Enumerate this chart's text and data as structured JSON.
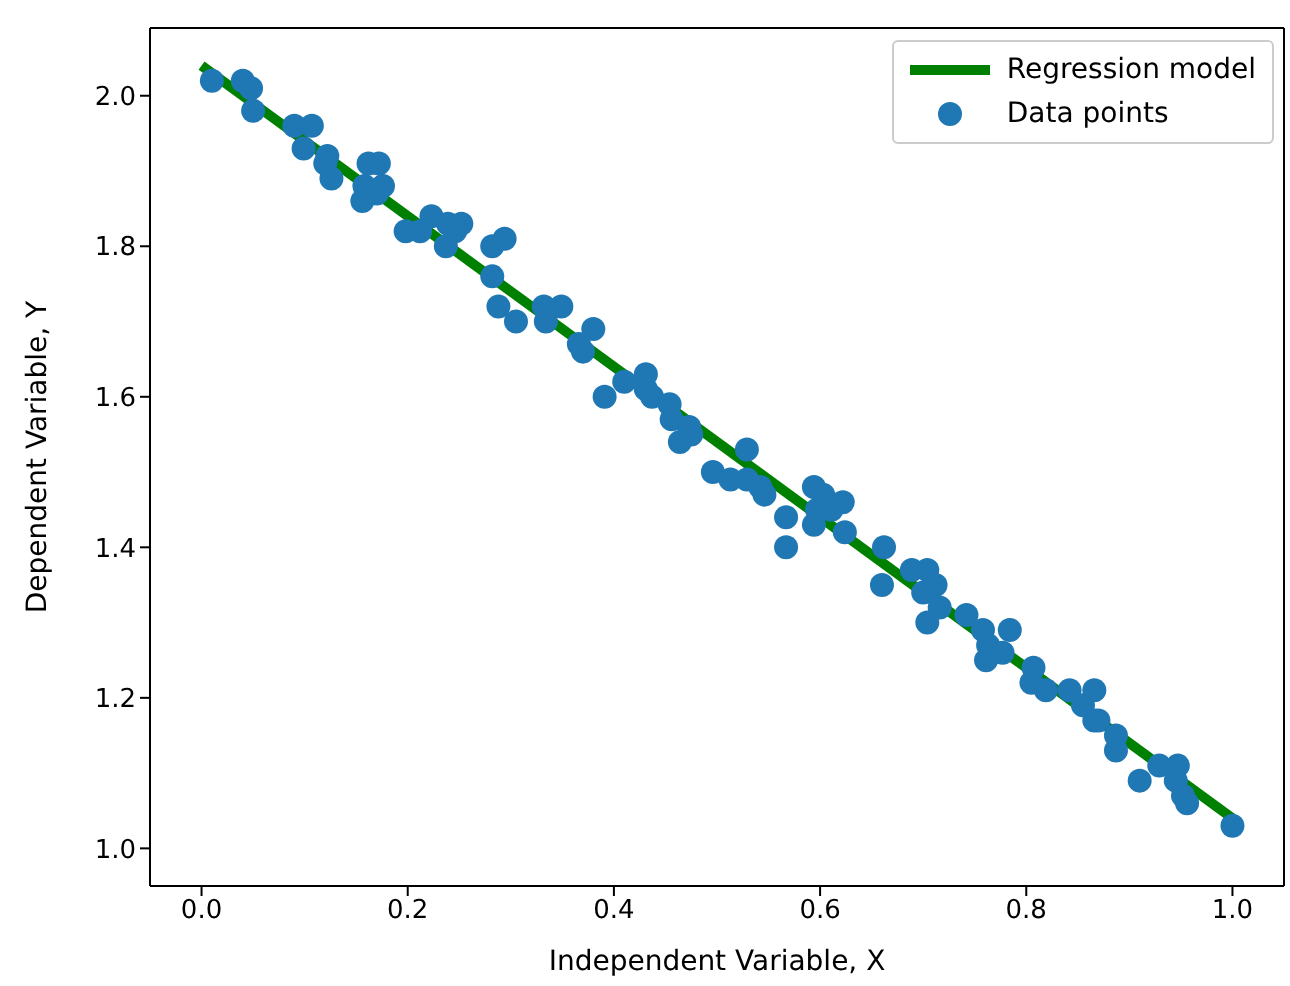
{
  "chart_data": {
    "type": "scatter",
    "xlabel": "Independent Variable, X",
    "ylabel": "Dependent Variable, Y",
    "xlim": [
      -0.05,
      1.05
    ],
    "xticks": [
      {
        "value": 0,
        "label": "0.0"
      },
      {
        "value": 0.2,
        "label": "0.2"
      },
      {
        "value": 0.4,
        "label": "0.4"
      },
      {
        "value": 0.6,
        "label": "0.6"
      },
      {
        "value": 0.8,
        "label": "0.8"
      },
      {
        "value": 1,
        "label": "1.0"
      }
    ],
    "ylim": [
      0.95,
      2.09
    ],
    "yticks": [
      {
        "value": 1,
        "label": "1.0"
      },
      {
        "value": 1.2,
        "label": "1.2"
      },
      {
        "value": 1.4,
        "label": "1.4"
      },
      {
        "value": 1.6,
        "label": "1.6"
      },
      {
        "value": 1.8,
        "label": "1.8"
      },
      {
        "value": 2,
        "label": "2.0"
      }
    ],
    "grid": false,
    "legend": "top right",
    "marker": "circle",
    "series": [
      {
        "name": "Regression model",
        "type": "line",
        "color": "#008000",
        "line_style": "solid",
        "marker": "none",
        "x": [
          0,
          1
        ],
        "values": [
          2.04,
          1.04
        ]
      },
      {
        "name": "Data points",
        "color": "#1f77b4",
        "x": [
          0.01,
          0.04,
          0.048,
          0.05,
          0.09,
          0.107,
          0.099,
          0.122,
          0.12,
          0.126,
          0.162,
          0.172,
          0.158,
          0.17,
          0.156,
          0.176,
          0.198,
          0.223,
          0.212,
          0.239,
          0.237,
          0.246,
          0.252,
          0.282,
          0.294,
          0.282,
          0.288,
          0.305,
          0.334,
          0.332,
          0.349,
          0.37,
          0.366,
          0.38,
          0.391,
          0.41,
          0.431,
          0.431,
          0.437,
          0.454,
          0.456,
          0.464,
          0.475,
          0.473,
          0.496,
          0.513,
          0.529,
          0.529,
          0.542,
          0.546,
          0.567,
          0.567,
          0.594,
          0.603,
          0.594,
          0.597,
          0.622,
          0.611,
          0.624,
          0.66,
          0.662,
          0.689,
          0.704,
          0.7,
          0.704,
          0.712,
          0.716,
          0.742,
          0.758,
          0.761,
          0.763,
          0.777,
          0.784,
          0.805,
          0.807,
          0.819,
          0.842,
          0.855,
          0.866,
          0.866,
          0.87,
          0.887,
          0.887,
          0.91,
          0.929,
          0.947,
          0.945,
          0.952,
          0.956,
          1.0
        ],
        "values": [
          2.02,
          2.02,
          2.01,
          1.98,
          1.96,
          1.96,
          1.93,
          1.92,
          1.91,
          1.89,
          1.91,
          1.91,
          1.88,
          1.87,
          1.86,
          1.88,
          1.82,
          1.84,
          1.82,
          1.83,
          1.8,
          1.82,
          1.83,
          1.8,
          1.81,
          1.76,
          1.72,
          1.7,
          1.7,
          1.72,
          1.72,
          1.66,
          1.67,
          1.69,
          1.6,
          1.62,
          1.61,
          1.63,
          1.6,
          1.59,
          1.57,
          1.54,
          1.55,
          1.56,
          1.5,
          1.49,
          1.49,
          1.53,
          1.48,
          1.47,
          1.4,
          1.44,
          1.48,
          1.47,
          1.43,
          1.45,
          1.46,
          1.45,
          1.42,
          1.35,
          1.4,
          1.37,
          1.37,
          1.34,
          1.3,
          1.35,
          1.32,
          1.31,
          1.29,
          1.25,
          1.27,
          1.26,
          1.29,
          1.22,
          1.24,
          1.21,
          1.21,
          1.19,
          1.17,
          1.21,
          1.17,
          1.13,
          1.15,
          1.09,
          1.11,
          1.11,
          1.09,
          1.07,
          1.06,
          1.03
        ]
      }
    ]
  }
}
